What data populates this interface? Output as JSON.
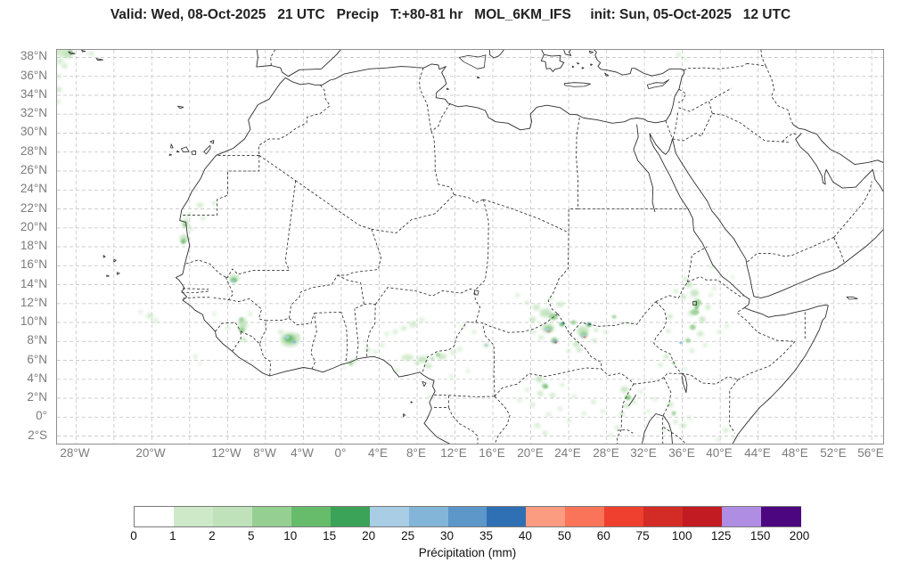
{
  "title": {
    "text": "Valid: Wed, 08-Oct-2025   21 UTC   Precip   T:+80-81 hr   MOL_6KM_IFS     init: Sun, 05-Oct-2025   12 UTC"
  },
  "map": {
    "lon_min": -30,
    "lon_max": 57.2,
    "lat_min": -2.8,
    "lat_max": 38.8,
    "grid_lon_step": 4,
    "grid_lat_step": 2
  },
  "axes": {
    "lat_ticks": [
      {
        "value": 38,
        "label": "38°N"
      },
      {
        "value": 36,
        "label": "36°N"
      },
      {
        "value": 34,
        "label": "34°N"
      },
      {
        "value": 32,
        "label": "32°N"
      },
      {
        "value": 30,
        "label": "30°N"
      },
      {
        "value": 28,
        "label": "28°N"
      },
      {
        "value": 26,
        "label": "26°N"
      },
      {
        "value": 24,
        "label": "24°N"
      },
      {
        "value": 22,
        "label": "22°N"
      },
      {
        "value": 20,
        "label": "20°N"
      },
      {
        "value": 18,
        "label": "18°N"
      },
      {
        "value": 16,
        "label": "16°N"
      },
      {
        "value": 14,
        "label": "14°N"
      },
      {
        "value": 12,
        "label": "12°N"
      },
      {
        "value": 10,
        "label": "10°N"
      },
      {
        "value": 8,
        "label": "8°N"
      },
      {
        "value": 6,
        "label": "6°N"
      },
      {
        "value": 4,
        "label": "4°N"
      },
      {
        "value": 2,
        "label": "2°N"
      },
      {
        "value": 0,
        "label": "0°"
      },
      {
        "value": -2,
        "label": "2°S"
      }
    ],
    "lon_ticks": [
      {
        "value": -28,
        "label": "28°W"
      },
      {
        "value": -20,
        "label": "20°W"
      },
      {
        "value": -12,
        "label": "12°W"
      },
      {
        "value": -8,
        "label": "8°W"
      },
      {
        "value": -4,
        "label": "4°W"
      },
      {
        "value": 0,
        "label": "0°"
      },
      {
        "value": 4,
        "label": "4°E"
      },
      {
        "value": 8,
        "label": "8°E"
      },
      {
        "value": 12,
        "label": "12°E"
      },
      {
        "value": 16,
        "label": "16°E"
      },
      {
        "value": 20,
        "label": "20°E"
      },
      {
        "value": 24,
        "label": "24°E"
      },
      {
        "value": 28,
        "label": "28°E"
      },
      {
        "value": 32,
        "label": "32°E"
      },
      {
        "value": 36,
        "label": "36°E"
      },
      {
        "value": 40,
        "label": "40°E"
      },
      {
        "value": 44,
        "label": "44°E"
      },
      {
        "value": 48,
        "label": "48°E"
      },
      {
        "value": 52,
        "label": "52°E"
      },
      {
        "value": 56,
        "label": "56°E"
      }
    ]
  },
  "colorbar": {
    "label": "Précipitation (mm)",
    "ticks": [
      0,
      1,
      2,
      5,
      10,
      15,
      20,
      25,
      30,
      35,
      40,
      50,
      60,
      75,
      100,
      125,
      150,
      200
    ],
    "colors": [
      "#ffffff",
      "#cde9c8",
      "#c0e2bb",
      "#96cf92",
      "#66bc6b",
      "#3aa357",
      "#a9cde4",
      "#82b5d7",
      "#5d96c9",
      "#2e70b3",
      "#fb9c80",
      "#f97458",
      "#ee3f2f",
      "#d32b26",
      "#c21b21",
      "#ae8de2",
      "#4c0680"
    ]
  },
  "precipitation_cells": [
    [
      -29.4,
      38.6,
      9,
      6,
      1
    ],
    [
      -28.8,
      38.3,
      5,
      4,
      2
    ],
    [
      -28.6,
      38.65,
      3,
      2,
      5
    ],
    [
      -29.7,
      37.6,
      4,
      3,
      1
    ],
    [
      -29.2,
      37.1,
      3,
      3,
      1
    ],
    [
      -26.4,
      38.4,
      4,
      2,
      1
    ],
    [
      -29.8,
      36.0,
      3,
      2,
      1
    ],
    [
      -29.85,
      34.6,
      4,
      3,
      1
    ],
    [
      -29.9,
      33.3,
      3,
      2,
      1
    ],
    [
      -14.9,
      22.4,
      4,
      3,
      1
    ],
    [
      -13.4,
      22.6,
      3,
      2,
      1
    ],
    [
      -16.2,
      21.3,
      3,
      2,
      1
    ],
    [
      -16.45,
      20.55,
      4,
      4,
      2
    ],
    [
      -16.5,
      20.3,
      2.5,
      2.5,
      5
    ],
    [
      -15.9,
      19.9,
      3,
      2,
      1
    ],
    [
      -16.6,
      18.9,
      5,
      4,
      2
    ],
    [
      -16.65,
      18.6,
      3,
      3,
      5
    ],
    [
      -16.7,
      18.5,
      1.8,
      1.5,
      10
    ],
    [
      -14.6,
      21.0,
      3,
      2,
      1
    ],
    [
      -20.2,
      10.7,
      4,
      3,
      1
    ],
    [
      -19.6,
      10.2,
      3,
      2,
      1
    ],
    [
      -21.2,
      11.1,
      2,
      2,
      1
    ],
    [
      -15.4,
      6.4,
      2.5,
      2,
      1
    ],
    [
      -14.9,
      5.7,
      2,
      1.5,
      1
    ],
    [
      -11.3,
      14.7,
      6,
      4,
      2
    ],
    [
      -11.35,
      14.45,
      3.5,
      2.5,
      10
    ],
    [
      -11.45,
      14.35,
      1.8,
      1.4,
      20
    ],
    [
      -10.4,
      9.8,
      5,
      7,
      2
    ],
    [
      -10.5,
      9.2,
      3.5,
      3,
      5
    ],
    [
      -10.55,
      10.3,
      2.5,
      2.5,
      5
    ],
    [
      -10.3,
      8.2,
      3,
      2.5,
      2
    ],
    [
      -12.0,
      9.4,
      2.5,
      2,
      1
    ],
    [
      -13.4,
      10.9,
      2,
      2,
      1
    ],
    [
      -9.6,
      10.9,
      2.5,
      2,
      1
    ],
    [
      -5.4,
      8.2,
      11,
      8,
      2
    ],
    [
      -5.45,
      8.25,
      6.5,
      5,
      5
    ],
    [
      -5.5,
      8.3,
      4,
      3.2,
      10
    ],
    [
      -5.7,
      8.45,
      2.4,
      2,
      20
    ],
    [
      -4.95,
      7.95,
      2,
      1.6,
      25
    ],
    [
      -6.4,
      9.0,
      3,
      2,
      2
    ],
    [
      -4.6,
      8.6,
      2.5,
      2,
      2
    ],
    [
      1.25,
      5.9,
      4.5,
      2.5,
      1
    ],
    [
      1.0,
      5.6,
      2.2,
      1.8,
      5
    ],
    [
      0.3,
      5.3,
      2,
      1.5,
      1
    ],
    [
      2.8,
      7.1,
      3.5,
      2.5,
      1
    ],
    [
      4.3,
      7.6,
      3,
      2,
      1
    ],
    [
      3.6,
      6.9,
      2.5,
      2,
      1
    ],
    [
      7.0,
      6.3,
      7,
      3.5,
      1
    ],
    [
      8.6,
      6.1,
      6,
      3.5,
      2
    ],
    [
      10.6,
      6.4,
      5.5,
      3,
      2
    ],
    [
      9.2,
      5.4,
      4,
      2.5,
      2
    ],
    [
      11.8,
      6.8,
      3.5,
      2.5,
      1
    ],
    [
      12.5,
      7.2,
      3,
      2,
      1
    ],
    [
      8.0,
      5.7,
      3,
      2,
      2
    ],
    [
      10.2,
      6.6,
      2.5,
      2,
      5
    ],
    [
      9.6,
      6.2,
      2,
      1.5,
      5
    ],
    [
      5.9,
      4.9,
      3,
      2,
      1
    ],
    [
      9.6,
      3.6,
      3,
      2,
      1
    ],
    [
      9.4,
      2.2,
      2.5,
      2,
      1
    ],
    [
      11.6,
      4.3,
      2.5,
      2,
      1
    ],
    [
      13.4,
      4.9,
      2,
      2,
      1
    ],
    [
      7.6,
      9.8,
      4.5,
      3.5,
      1
    ],
    [
      6.6,
      9.4,
      3.5,
      2.5,
      1
    ],
    [
      5.7,
      9.0,
      3,
      2.5,
      1
    ],
    [
      8.5,
      10.3,
      3,
      2,
      1
    ],
    [
      4.8,
      8.8,
      2.5,
      2,
      1
    ],
    [
      12.9,
      9.6,
      3,
      2,
      1
    ],
    [
      14.0,
      9.0,
      2.5,
      2,
      1
    ],
    [
      15.3,
      7.6,
      3.5,
      2.5,
      2
    ],
    [
      15.3,
      7.6,
      1.6,
      1.3,
      20
    ],
    [
      21.6,
      11.0,
      7,
      5,
      2
    ],
    [
      22.4,
      10.6,
      5,
      4,
      5
    ],
    [
      20.6,
      11.6,
      4,
      3,
      2
    ],
    [
      20.2,
      10.3,
      3.5,
      3,
      2
    ],
    [
      23.1,
      11.9,
      4,
      2.5,
      2
    ],
    [
      22.1,
      12.5,
      3,
      2,
      1
    ],
    [
      21.8,
      9.4,
      7,
      5,
      2
    ],
    [
      21.9,
      9.3,
      4.5,
      3.5,
      5
    ],
    [
      21.75,
      9.2,
      2.8,
      2.2,
      20
    ],
    [
      21.9,
      9.05,
      1.4,
      1.1,
      50
    ],
    [
      22.5,
      8.1,
      4,
      3.5,
      5
    ],
    [
      22.55,
      8.0,
      2.4,
      2,
      25
    ],
    [
      22.65,
      7.9,
      1.2,
      1,
      75
    ],
    [
      23.3,
      9.8,
      3,
      2.5,
      10
    ],
    [
      23.4,
      9.9,
      1.5,
      1.2,
      30
    ],
    [
      21.1,
      8.4,
      3,
      2,
      2
    ],
    [
      20.3,
      9.0,
      2.5,
      2,
      2
    ],
    [
      19.6,
      12.1,
      3,
      2,
      1
    ],
    [
      18.6,
      12.9,
      2.5,
      2,
      1
    ],
    [
      25.5,
      9.1,
      6.5,
      5.5,
      2
    ],
    [
      25.6,
      8.7,
      4.5,
      3.5,
      5
    ],
    [
      25.55,
      8.55,
      2.8,
      2.2,
      20
    ],
    [
      25.7,
      8.45,
      1.4,
      1.1,
      50
    ],
    [
      26.15,
      9.75,
      3,
      2.5,
      10
    ],
    [
      26.2,
      9.85,
      1.6,
      1.3,
      30
    ],
    [
      24.8,
      7.7,
      4,
      3,
      2
    ],
    [
      25.1,
      7.1,
      3,
      2.5,
      2
    ],
    [
      26.7,
      8.1,
      3,
      2,
      2
    ],
    [
      24.5,
      10.0,
      3,
      2.5,
      5
    ],
    [
      26.9,
      9.2,
      2.5,
      2,
      2
    ],
    [
      27.9,
      9.0,
      2.5,
      2,
      1
    ],
    [
      24.0,
      7.0,
      2.5,
      2,
      1
    ],
    [
      28.8,
      10.6,
      2.5,
      2,
      5
    ],
    [
      30.3,
      9.9,
      2,
      1.5,
      2
    ],
    [
      20.9,
      4.0,
      4.5,
      3.5,
      2
    ],
    [
      21.5,
      3.3,
      3.5,
      3,
      5
    ],
    [
      21.6,
      3.2,
      1.8,
      1.5,
      10
    ],
    [
      21.0,
      2.5,
      3,
      3,
      2
    ],
    [
      22.3,
      2.3,
      3,
      2.5,
      2
    ],
    [
      20.2,
      1.3,
      3,
      2.5,
      1
    ],
    [
      21.9,
      0.3,
      3,
      2,
      1
    ],
    [
      20.7,
      -0.9,
      3.5,
      2.5,
      1
    ],
    [
      21.5,
      -1.7,
      3,
      2,
      2
    ],
    [
      19.6,
      2.9,
      2.5,
      2,
      1
    ],
    [
      23.1,
      0.9,
      2.5,
      2,
      1
    ],
    [
      24.1,
      -0.4,
      2.5,
      2,
      1
    ],
    [
      25.6,
      0.4,
      2.5,
      2,
      1
    ],
    [
      26.6,
      1.6,
      2.5,
      2,
      2
    ],
    [
      27.6,
      0.6,
      2.5,
      2,
      1
    ],
    [
      18.8,
      1.8,
      2.5,
      2,
      1
    ],
    [
      23.3,
      3.4,
      2.5,
      2,
      1
    ],
    [
      24.6,
      2.2,
      2.5,
      2,
      1
    ],
    [
      29.9,
      2.9,
      4.5,
      3.5,
      2
    ],
    [
      30.25,
      2.1,
      3.5,
      3,
      5
    ],
    [
      30.3,
      2.0,
      1.8,
      1.5,
      10
    ],
    [
      30.1,
      1.2,
      3.5,
      2.5,
      2
    ],
    [
      29.6,
      0.3,
      3,
      2.5,
      2
    ],
    [
      30.9,
      1.6,
      2.5,
      2,
      2
    ],
    [
      31.6,
      2.7,
      2.5,
      2,
      1
    ],
    [
      33.1,
      1.9,
      2.5,
      2,
      1
    ],
    [
      34.7,
      1.3,
      3.5,
      2.5,
      2
    ],
    [
      35.1,
      0.4,
      2.5,
      2.5,
      5
    ],
    [
      35.3,
      -0.5,
      2.5,
      2,
      2
    ],
    [
      34.1,
      -1.4,
      2.5,
      2,
      1
    ],
    [
      36.1,
      -0.9,
      3.5,
      2.5,
      2
    ],
    [
      36.7,
      -0.1,
      2.5,
      2,
      1
    ],
    [
      29.1,
      -1.1,
      2.5,
      2,
      2
    ],
    [
      28.5,
      -1.9,
      2.5,
      2,
      1
    ],
    [
      32.4,
      0.6,
      2.5,
      2,
      1
    ],
    [
      40.6,
      -1.4,
      3.5,
      2.5,
      1
    ],
    [
      41.6,
      -2.2,
      3,
      2,
      1
    ],
    [
      39.8,
      -2.4,
      2.5,
      2,
      1
    ],
    [
      36.7,
      14.0,
      4,
      3,
      2
    ],
    [
      37.3,
      13.1,
      5,
      4,
      2
    ],
    [
      37.6,
      12.1,
      4.5,
      4,
      5
    ],
    [
      37.35,
      11.1,
      4.5,
      3.5,
      5
    ],
    [
      37.5,
      11.6,
      2.5,
      2,
      10
    ],
    [
      38.1,
      10.3,
      3.5,
      3.5,
      2
    ],
    [
      37.1,
      9.5,
      3.5,
      3,
      5
    ],
    [
      37.9,
      8.8,
      3.5,
      2.5,
      2
    ],
    [
      36.6,
      8.1,
      3,
      2.5,
      5
    ],
    [
      35.85,
      7.85,
      1.8,
      1.4,
      25
    ],
    [
      38.7,
      11.6,
      3,
      2.5,
      2
    ],
    [
      39.0,
      12.9,
      2.5,
      2,
      1
    ],
    [
      39.4,
      13.6,
      2.5,
      2,
      1
    ],
    [
      36.3,
      14.6,
      2.5,
      2,
      2
    ],
    [
      35.3,
      13.3,
      2.5,
      2.5,
      1
    ],
    [
      34.7,
      10.6,
      3,
      2.5,
      2
    ],
    [
      34.5,
      9.1,
      2.5,
      2,
      2
    ],
    [
      37.0,
      7.0,
      2.5,
      2,
      2
    ],
    [
      38.4,
      7.6,
      2.5,
      2,
      1
    ],
    [
      39.9,
      9.0,
      2.5,
      2,
      1
    ],
    [
      40.7,
      9.6,
      2.5,
      2,
      1
    ],
    [
      36.1,
      12.7,
      3,
      3,
      2
    ],
    [
      36.9,
      11.0,
      3,
      3,
      2
    ],
    [
      39.1,
      15.9,
      2.5,
      2,
      1
    ],
    [
      41.3,
      14.8,
      2,
      1.5,
      1
    ],
    [
      34.3,
      6.4,
      3,
      2.5,
      2
    ],
    [
      33.7,
      5.5,
      2.5,
      2,
      2
    ],
    [
      35.1,
      5.7,
      2,
      1.5,
      5
    ],
    [
      36.3,
      5.1,
      2,
      1.5,
      2
    ],
    [
      35.6,
      38.3,
      3,
      2,
      1
    ],
    [
      36.4,
      37.8,
      2,
      1.5,
      1
    ],
    [
      33.1,
      35.3,
      2,
      1.5,
      1
    ],
    [
      26.4,
      36.8,
      2,
      1.5,
      1
    ],
    [
      27.1,
      37.3,
      1.8,
      1.4,
      1
    ]
  ]
}
